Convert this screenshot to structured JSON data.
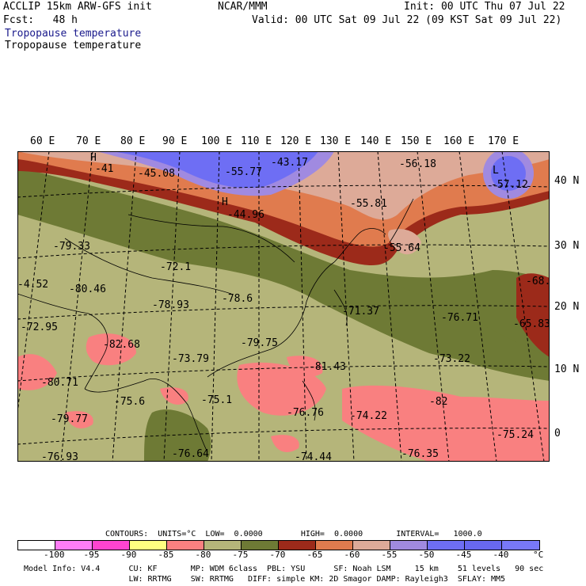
{
  "header": {
    "line1_left": "ACCLIP 15km ARW-GFS init",
    "line1_center": "NCAR/MMM",
    "line1_right": "Init: 00 UTC Thu 07 Jul 22",
    "line2_left": "Fcst:   48 h",
    "line2_right": "Valid: 00 UTC Sat 09 Jul 22 (09 KST Sat 09 Jul 22)",
    "title1": "Tropopause temperature",
    "title2": "Tropopause temperature"
  },
  "lon_labels": [
    "60 E",
    "70 E",
    "80 E",
    "90 E",
    "100 E",
    "110 E",
    "120 E",
    "130 E",
    "140 E",
    "150 E",
    "160 E",
    "170 E"
  ],
  "lat_labels": [
    "40 N",
    "30 N",
    "20 N",
    "10 N",
    "0"
  ],
  "map_labels": [
    {
      "t": "H"
    },
    {
      "t": "-41"
    },
    {
      "t": "-45.08"
    },
    {
      "t": "-55.77"
    },
    {
      "t": "-43.17"
    },
    {
      "t": "-56.18"
    },
    {
      "t": "L"
    },
    {
      "t": "-57.12"
    },
    {
      "t": "H"
    },
    {
      "t": "-44.96"
    },
    {
      "t": "-55.81"
    },
    {
      "t": "-79.33"
    },
    {
      "t": "-72.1"
    },
    {
      "t": "-55.64"
    },
    {
      "t": "-80.46"
    },
    {
      "t": "-78.6"
    },
    {
      "t": "-78.93"
    },
    {
      "t": "-68."
    },
    {
      "t": "-72.95"
    },
    {
      "t": "-71.37"
    },
    {
      "t": "-76.71"
    },
    {
      "t": "-65.83"
    },
    {
      "t": "-82.68"
    },
    {
      "t": "-79.75"
    },
    {
      "t": "-73.79"
    },
    {
      "t": "-81.43"
    },
    {
      "t": "-73.22"
    },
    {
      "t": "-80.71"
    },
    {
      "t": "-75.6"
    },
    {
      "t": "-75.1"
    },
    {
      "t": "-82"
    },
    {
      "t": "-79.77"
    },
    {
      "t": "-76.76"
    },
    {
      "t": "-74.22"
    },
    {
      "t": "-75.24"
    },
    {
      "t": "-76.93"
    },
    {
      "t": "-76.64"
    },
    {
      "t": "-74.44"
    },
    {
      "t": "-76.35"
    },
    {
      "t": "-4.52"
    }
  ],
  "contours": {
    "text": "CONTOURS:  UNITS=°C  LOW=  0.0000        HIGH=  0.0000       INTERVAL=   1000.0"
  },
  "colorbar": {
    "colors": [
      "#ffffff",
      "#ff7df6",
      "#ff44d0",
      "#ffff80",
      "#f98080",
      "#b5b57a",
      "#6e7a35",
      "#9c2a1a",
      "#e07b4e",
      "#ddaa98",
      "#a08ae0",
      "#6e6ef4",
      "#6868f0",
      "#7878f8"
    ],
    "labels": [
      "-100",
      "-95",
      "-90",
      "-85",
      "-80",
      "-75",
      "-70",
      "-65",
      "-60",
      "-55",
      "-50",
      "-45",
      "-40",
      "°C"
    ]
  },
  "footer": {
    "line1": "Model Info: V4.4      CU: KF       MP: WDM 6class  PBL: YSU      SF: Noah LSM     15 km    51 levels   90 sec",
    "line2": "                      LW: RRTMG    SW: RRTMG   DIFF: simple KM: 2D Smagor DAMP: Rayleigh3  SFLAY: MM5"
  }
}
